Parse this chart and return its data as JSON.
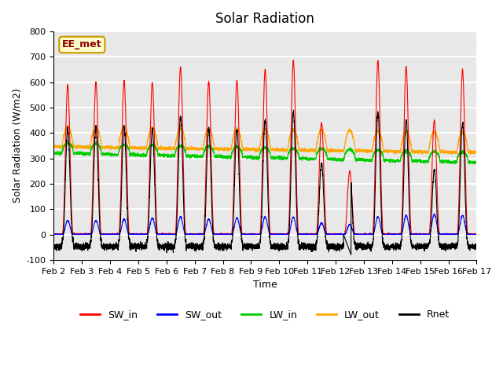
{
  "title": "Solar Radiation",
  "xlabel": "Time",
  "ylabel": "Solar Radiation (W/m2)",
  "ylim": [
    -100,
    800
  ],
  "xlim": [
    0,
    15
  ],
  "xtick_labels": [
    "Feb 2",
    "Feb 3",
    "Feb 4",
    "Feb 5",
    "Feb 6",
    "Feb 7",
    "Feb 8",
    "Feb 9",
    "Feb 10",
    "Feb 11",
    "Feb 12",
    "Feb 13",
    "Feb 14",
    "Feb 15",
    "Feb 16",
    "Feb 17"
  ],
  "ytick_labels": [
    -100,
    0,
    100,
    200,
    300,
    400,
    500,
    600,
    700,
    800
  ],
  "legend_labels": [
    "SW_in",
    "SW_out",
    "LW_in",
    "LW_out",
    "Rnet"
  ],
  "legend_colors": [
    "#ff0000",
    "#0000ff",
    "#00cc00",
    "#ffa500",
    "#000000"
  ],
  "annotation_text": "EE_met",
  "annotation_bg": "#ffffcc",
  "annotation_border": "#cc9900",
  "bg_color": "#e8e8e8",
  "grid_color": "#ffffff",
  "n_days": 15,
  "points_per_day": 288
}
